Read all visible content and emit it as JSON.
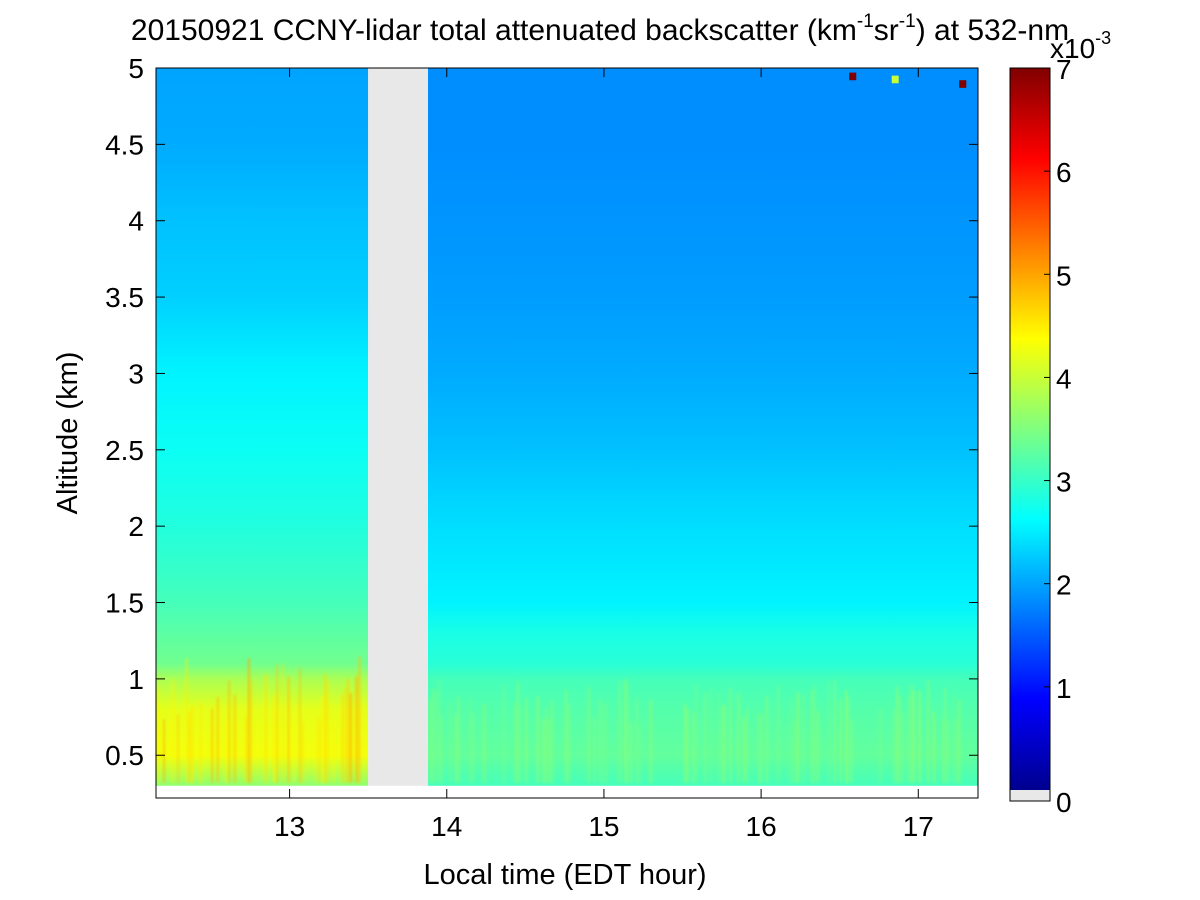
{
  "chart_data": {
    "type": "heatmap",
    "title_parts": [
      "20150921 CCNY-lidar total attenuated backscatter (km",
      "-1",
      "sr",
      "-1",
      ") at 532-nm"
    ],
    "xlabel": "Local time (EDT hour)",
    "ylabel": "Altitude (km)",
    "xlim": [
      12.15,
      17.38
    ],
    "ylim": [
      0.22,
      5.0
    ],
    "data_ylim": [
      0.3,
      5.0
    ],
    "x_ticks": [
      "13",
      "14",
      "15",
      "16",
      "17"
    ],
    "y_ticks": [
      "0.5",
      "1",
      "1.5",
      "2",
      "2.5",
      "3",
      "3.5",
      "4",
      "4.5",
      "5"
    ],
    "data_gap": [
      13.5,
      13.88
    ],
    "gap_color": "#e8e8e8",
    "colorbar": {
      "min": 0,
      "max": 7,
      "ticks": [
        "0",
        "1",
        "2",
        "3",
        "4",
        "5",
        "6",
        "7"
      ],
      "exponent_label": "x10",
      "exponent": "-3",
      "colormap": "jet",
      "below_min_color": "#e8e8e8"
    },
    "grid": "off",
    "profile": {
      "altitude_km": [
        0.3,
        0.5,
        0.8,
        1.0,
        1.1,
        1.3,
        1.5,
        2.0,
        2.5,
        3.0,
        3.5,
        4.0,
        4.5,
        5.0
      ],
      "before_gap": [
        3.6,
        4.3,
        4.2,
        3.8,
        3.4,
        3.25,
        3.1,
        2.85,
        2.7,
        2.55,
        2.3,
        2.2,
        2.05,
        2.0
      ],
      "after_gap": [
        3.1,
        3.3,
        3.2,
        3.1,
        2.9,
        2.8,
        2.55,
        2.4,
        2.2,
        2.05,
        1.95,
        1.9,
        1.85,
        1.85
      ]
    },
    "features": [
      {
        "x": 16.58,
        "y": 4.97,
        "value": 7.0
      },
      {
        "x": 17.28,
        "y": 4.92,
        "value": 7.0
      },
      {
        "x": 16.85,
        "y": 4.95,
        "value": 4.0
      }
    ]
  }
}
